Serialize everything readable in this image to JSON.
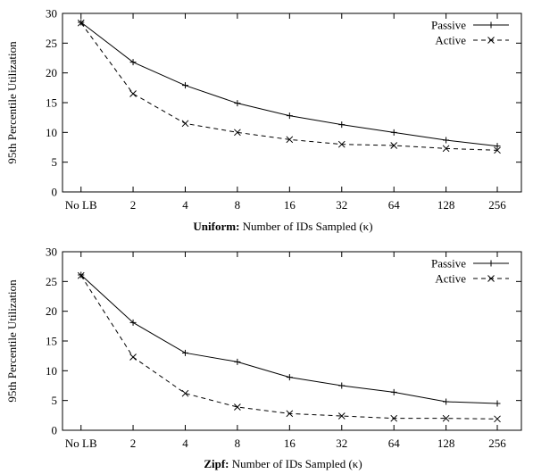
{
  "chart_data": [
    {
      "type": "line",
      "categories": [
        "No LB",
        "2",
        "4",
        "8",
        "16",
        "32",
        "64",
        "128",
        "256"
      ],
      "ylabel": "95th Percentile Utilization",
      "xlabel_bold": "Uniform:",
      "xlabel_rest": " Number of IDs Sampled (κ)",
      "ylim": [
        0,
        30
      ],
      "yticks": [
        0,
        5,
        10,
        15,
        20,
        25,
        30
      ],
      "legend_position": "top-right",
      "series": [
        {
          "name": "Passive",
          "style": "solid",
          "marker": "plus",
          "values": [
            28.5,
            21.8,
            17.9,
            14.9,
            12.8,
            11.3,
            10.0,
            8.7,
            7.7
          ]
        },
        {
          "name": "Active",
          "style": "dashed",
          "marker": "x",
          "values": [
            28.4,
            16.5,
            11.5,
            10.0,
            8.8,
            8.0,
            7.8,
            7.3,
            7.0
          ]
        }
      ]
    },
    {
      "type": "line",
      "categories": [
        "No LB",
        "2",
        "4",
        "8",
        "16",
        "32",
        "64",
        "128",
        "256"
      ],
      "ylabel": "95th Percentile Utilization",
      "xlabel_bold": "Zipf:",
      "xlabel_rest": " Number of IDs Sampled (κ)",
      "ylim": [
        0,
        30
      ],
      "yticks": [
        0,
        5,
        10,
        15,
        20,
        25,
        30
      ],
      "legend_position": "top-right",
      "series": [
        {
          "name": "Passive",
          "style": "solid",
          "marker": "plus",
          "values": [
            26.1,
            18.1,
            13.0,
            11.5,
            8.9,
            7.5,
            6.4,
            4.8,
            4.5
          ]
        },
        {
          "name": "Active",
          "style": "dashed",
          "marker": "x",
          "values": [
            26.0,
            12.3,
            6.2,
            3.9,
            2.8,
            2.4,
            2.0,
            2.0,
            1.9
          ]
        }
      ]
    }
  ]
}
